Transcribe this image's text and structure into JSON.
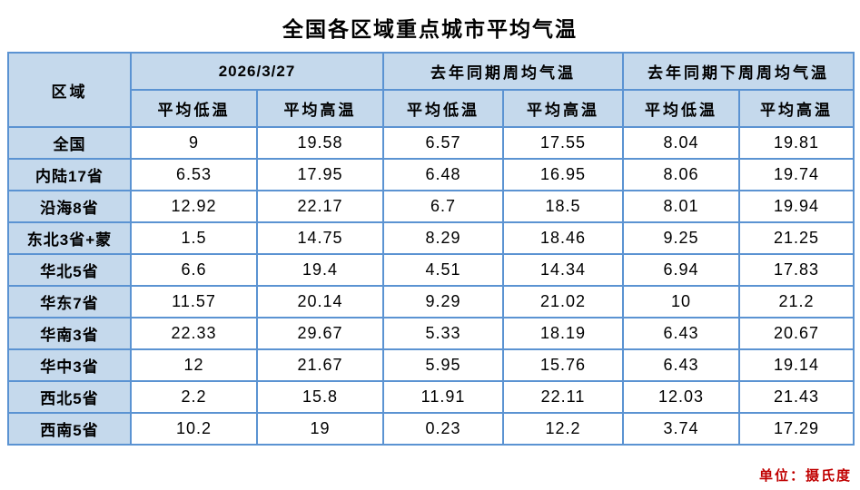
{
  "title": "全国各区域重点城市平均气温",
  "unit_note": "单位：摄氏度",
  "colors": {
    "header_bg": "#c5d9ec",
    "border_blue": "#5b93d2",
    "unit_text_red": "#c00000",
    "cell_bg": "#ffffff",
    "text": "#000000"
  },
  "table": {
    "region_header": "区域",
    "col_groups": [
      {
        "label": "2026/3/27"
      },
      {
        "label": "去年同期周均气温"
      },
      {
        "label": "去年同期下周周均气温"
      }
    ],
    "sub_headers": {
      "low": "平均低温",
      "high": "平均高温"
    },
    "rows": [
      {
        "region": "全国",
        "values": [
          "9",
          "19.58",
          "6.57",
          "17.55",
          "8.04",
          "19.81"
        ]
      },
      {
        "region": "内陆17省",
        "values": [
          "6.53",
          "17.95",
          "6.48",
          "16.95",
          "8.06",
          "19.74"
        ]
      },
      {
        "region": "沿海8省",
        "values": [
          "12.92",
          "22.17",
          "6.7",
          "18.5",
          "8.01",
          "19.94"
        ]
      },
      {
        "region": "东北3省+蒙",
        "values": [
          "1.5",
          "14.75",
          "8.29",
          "18.46",
          "9.25",
          "21.25"
        ]
      },
      {
        "region": "华北5省",
        "values": [
          "6.6",
          "19.4",
          "4.51",
          "14.34",
          "6.94",
          "17.83"
        ]
      },
      {
        "region": "华东7省",
        "values": [
          "11.57",
          "20.14",
          "9.29",
          "21.02",
          "10",
          "21.2"
        ]
      },
      {
        "region": "华南3省",
        "values": [
          "22.33",
          "29.67",
          "5.33",
          "18.19",
          "6.43",
          "20.67"
        ]
      },
      {
        "region": "华中3省",
        "values": [
          "12",
          "21.67",
          "5.95",
          "15.76",
          "6.43",
          "19.14"
        ]
      },
      {
        "region": "西北5省",
        "values": [
          "2.2",
          "15.8",
          "11.91",
          "22.11",
          "12.03",
          "21.43"
        ]
      },
      {
        "region": "西南5省",
        "values": [
          "10.2",
          "19",
          "0.23",
          "12.2",
          "3.74",
          "17.29"
        ]
      }
    ]
  },
  "chart_data": {
    "type": "table",
    "title": "全国各区域重点城市平均气温",
    "unit": "摄氏度",
    "categories": [
      "全国",
      "内陆17省",
      "沿海8省",
      "东北3省+蒙",
      "华北5省",
      "华东7省",
      "华南3省",
      "华中3省",
      "西北5省",
      "西南5省"
    ],
    "series": [
      {
        "name": "2026/3/27 平均低温",
        "values": [
          9,
          6.53,
          12.92,
          1.5,
          6.6,
          11.57,
          22.33,
          12,
          2.2,
          10.2
        ]
      },
      {
        "name": "2026/3/27 平均高温",
        "values": [
          19.58,
          17.95,
          22.17,
          14.75,
          19.4,
          20.14,
          29.67,
          21.67,
          15.8,
          19
        ]
      },
      {
        "name": "去年同期周均气温 平均低温",
        "values": [
          6.57,
          6.48,
          6.7,
          8.29,
          4.51,
          9.29,
          5.33,
          5.95,
          11.91,
          0.23
        ]
      },
      {
        "name": "去年同期周均气温 平均高温",
        "values": [
          17.55,
          16.95,
          18.5,
          18.46,
          14.34,
          21.02,
          18.19,
          15.76,
          22.11,
          12.2
        ]
      },
      {
        "name": "去年同期下周周均气温 平均低温",
        "values": [
          8.04,
          8.06,
          8.01,
          9.25,
          6.94,
          10,
          6.43,
          6.43,
          12.03,
          3.74
        ]
      },
      {
        "name": "去年同期下周周均气温 平均高温",
        "values": [
          19.81,
          19.74,
          19.94,
          21.25,
          17.83,
          21.2,
          20.67,
          19.14,
          21.43,
          17.29
        ]
      }
    ]
  }
}
